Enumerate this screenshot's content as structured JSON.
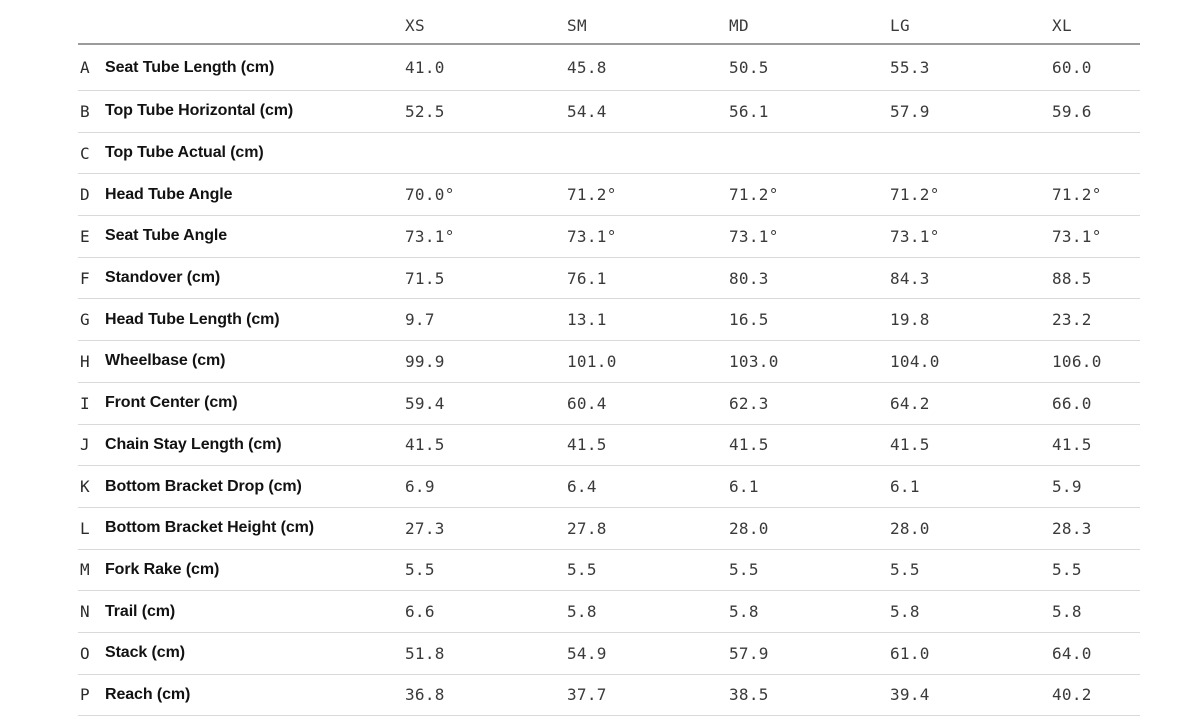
{
  "table": {
    "columns": [
      "XS",
      "SM",
      "MD",
      "LG",
      "XL"
    ],
    "colors": {
      "header_rule": "#9b9b9b",
      "row_rule": "#d9d9d9",
      "label_text": "#121212",
      "value_text": "#3a3a3a"
    },
    "rows": [
      {
        "letter": "A",
        "label": "Seat Tube Length (cm)",
        "values": [
          "41.0",
          "45.8",
          "50.5",
          "55.3",
          "60.0"
        ]
      },
      {
        "letter": "B",
        "label": "Top Tube Horizontal (cm)",
        "values": [
          "52.5",
          "54.4",
          "56.1",
          "57.9",
          "59.6"
        ]
      },
      {
        "letter": "C",
        "label": "Top Tube Actual (cm)",
        "values": [
          "",
          "",
          "",
          "",
          ""
        ]
      },
      {
        "letter": "D",
        "label": "Head Tube Angle",
        "values": [
          "70.0°",
          "71.2°",
          "71.2°",
          "71.2°",
          "71.2°"
        ]
      },
      {
        "letter": "E",
        "label": "Seat Tube Angle",
        "values": [
          "73.1°",
          "73.1°",
          "73.1°",
          "73.1°",
          "73.1°"
        ]
      },
      {
        "letter": "F",
        "label": "Standover (cm)",
        "values": [
          "71.5",
          "76.1",
          "80.3",
          "84.3",
          "88.5"
        ]
      },
      {
        "letter": "G",
        "label": "Head Tube Length (cm)",
        "values": [
          "9.7",
          "13.1",
          "16.5",
          "19.8",
          "23.2"
        ]
      },
      {
        "letter": "H",
        "label": "Wheelbase (cm)",
        "values": [
          "99.9",
          "101.0",
          "103.0",
          "104.0",
          "106.0"
        ]
      },
      {
        "letter": "I",
        "label": "Front Center (cm)",
        "values": [
          "59.4",
          "60.4",
          "62.3",
          "64.2",
          "66.0"
        ]
      },
      {
        "letter": "J",
        "label": "Chain Stay Length (cm)",
        "values": [
          "41.5",
          "41.5",
          "41.5",
          "41.5",
          "41.5"
        ]
      },
      {
        "letter": "K",
        "label": "Bottom Bracket Drop (cm)",
        "values": [
          "6.9",
          "6.4",
          "6.1",
          "6.1",
          "5.9"
        ]
      },
      {
        "letter": "L",
        "label": "Bottom Bracket Height (cm)",
        "values": [
          "27.3",
          "27.8",
          "28.0",
          "28.0",
          "28.3"
        ]
      },
      {
        "letter": "M",
        "label": "Fork Rake (cm)",
        "values": [
          "5.5",
          "5.5",
          "5.5",
          "5.5",
          "5.5"
        ]
      },
      {
        "letter": "N",
        "label": "Trail (cm)",
        "values": [
          "6.6",
          "5.8",
          "5.8",
          "5.8",
          "5.8"
        ]
      },
      {
        "letter": "O",
        "label": "Stack (cm)",
        "values": [
          "51.8",
          "54.9",
          "57.9",
          "61.0",
          "64.0"
        ]
      },
      {
        "letter": "P",
        "label": "Reach (cm)",
        "values": [
          "36.8",
          "37.7",
          "38.5",
          "39.4",
          "40.2"
        ]
      }
    ]
  }
}
